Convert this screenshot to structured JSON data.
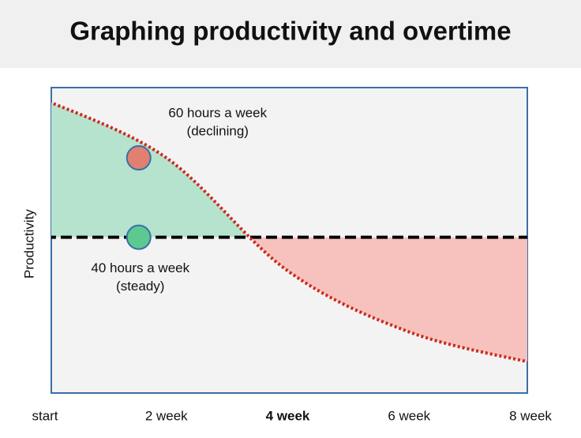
{
  "chart_data": {
    "type": "line",
    "title": "Graphing productivity and overtime",
    "y_label": "Productivity",
    "categories": [
      "start",
      "2 week",
      "4 week",
      "6 week",
      "8 week"
    ],
    "highlight_category": 2,
    "ylim": [
      0,
      100
    ],
    "series": [
      {
        "color": "#cc2a1e",
        "values": [
          96,
          77,
          40,
          20,
          10
        ],
        "marker_color": "#e08070"
      },
      {
        "color": "#000000",
        "values": [
          51,
          51,
          51,
          51,
          51
        ],
        "marker_color": "#5cc990"
      }
    ],
    "area_colors": [
      "#b6e3cd",
      "#f7c2bd"
    ],
    "annotations": [
      {
        "series": 0,
        "lines": [
          "60 hours a week",
          "(declining)"
        ]
      },
      {
        "series": 1,
        "lines": [
          "40 hours a week",
          "(steady)"
        ]
      }
    ]
  }
}
